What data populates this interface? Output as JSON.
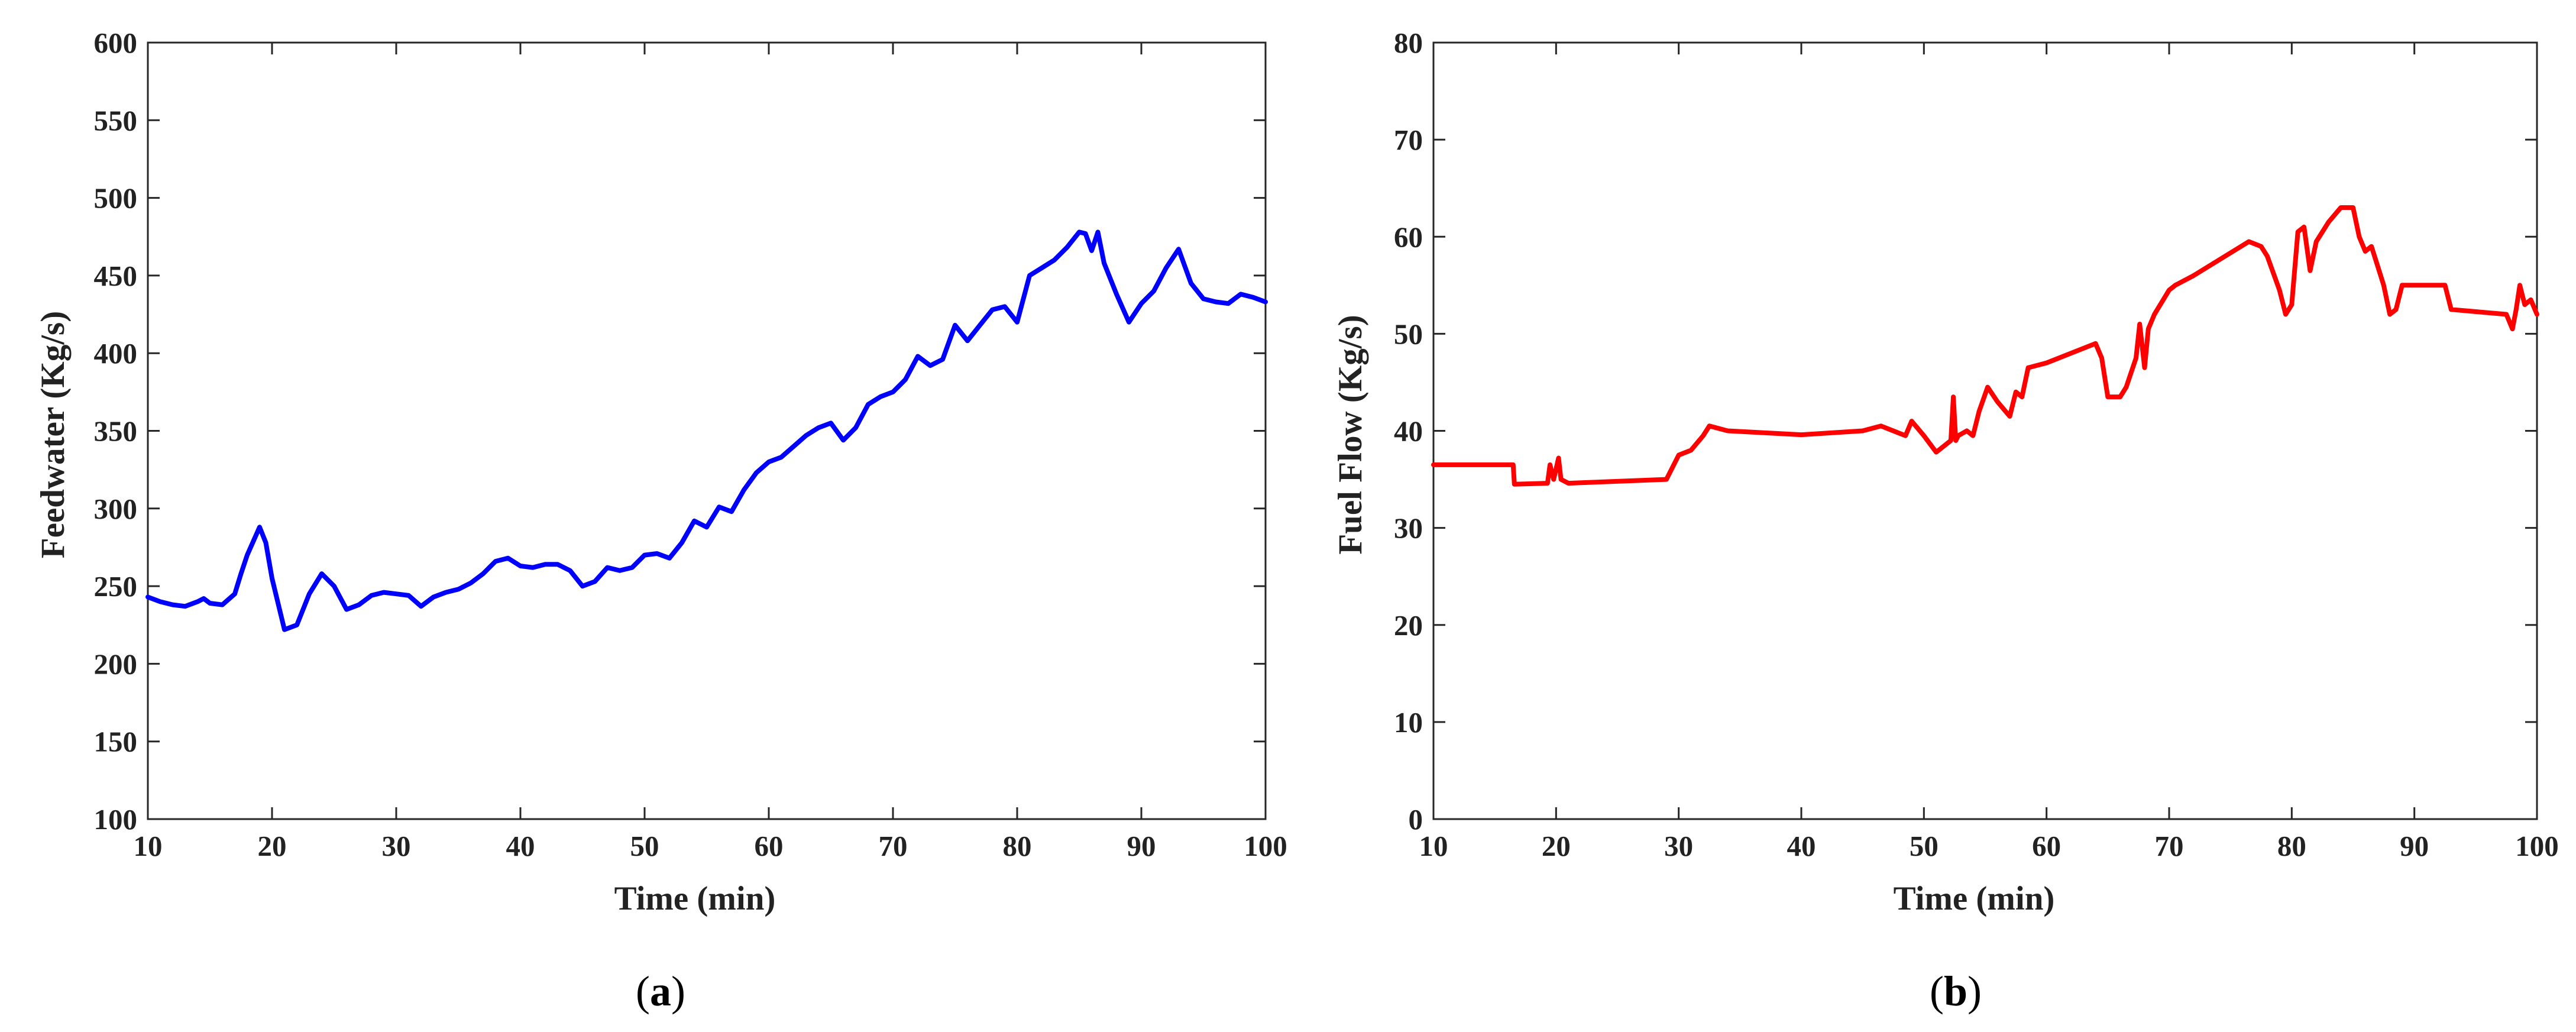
{
  "colors": {
    "series_a": "#0000ff",
    "series_b": "#ff0000",
    "axes": "#262626",
    "background": "#ffffff"
  },
  "chart_data": [
    {
      "panel_label": {
        "open": "(",
        "letter": "a",
        "close": ")"
      },
      "type": "line",
      "xlabel": "Time (min)",
      "ylabel": "Feedwater (Kg/s)",
      "xlim": [
        10,
        100
      ],
      "ylim": [
        100,
        600
      ],
      "xticks": [
        10,
        20,
        30,
        40,
        50,
        60,
        70,
        80,
        90,
        100
      ],
      "yticks": [
        100,
        150,
        200,
        250,
        300,
        350,
        400,
        450,
        500,
        550,
        600
      ],
      "grid": false,
      "series": [
        {
          "color": "#0000ff",
          "x": [
            10,
            11,
            12,
            13,
            14,
            14.5,
            15,
            16,
            17,
            17.5,
            18,
            19,
            19.5,
            20,
            21,
            22,
            23,
            24,
            25,
            26,
            27,
            28,
            29,
            30,
            31,
            32,
            33,
            34,
            35,
            36,
            37,
            38,
            39,
            40,
            41,
            42,
            43,
            44,
            45,
            46,
            47,
            48,
            49,
            50,
            51,
            52,
            53,
            54,
            55,
            56,
            57,
            58,
            59,
            60,
            61,
            62,
            63,
            64,
            65,
            66,
            67,
            68,
            69,
            70,
            71,
            72,
            73,
            74,
            75,
            76,
            77,
            78,
            79,
            80,
            81,
            82,
            83,
            84,
            85,
            85.5,
            86,
            86.5,
            87,
            88,
            89,
            90,
            91,
            92,
            93,
            94,
            95,
            96,
            97,
            98,
            99,
            100
          ],
          "y": [
            243,
            240,
            238,
            237,
            240,
            242,
            239,
            238,
            245,
            258,
            270,
            288,
            278,
            255,
            222,
            225,
            245,
            258,
            250,
            235,
            238,
            244,
            246,
            245,
            244,
            237,
            243,
            246,
            248,
            252,
            258,
            266,
            268,
            263,
            262,
            264,
            264,
            260,
            250,
            253,
            262,
            260,
            262,
            270,
            271,
            268,
            278,
            292,
            288,
            301,
            298,
            312,
            323,
            330,
            333,
            340,
            347,
            352,
            355,
            344,
            352,
            367,
            372,
            375,
            383,
            398,
            392,
            396,
            418,
            408,
            418,
            428,
            430,
            420,
            450,
            455,
            460,
            468,
            478,
            477,
            466,
            478,
            458,
            438,
            420,
            432,
            440,
            455,
            467,
            445,
            435,
            433,
            432,
            438,
            436,
            433
          ]
        }
      ]
    },
    {
      "panel_label": {
        "open": "(",
        "letter": "b",
        "close": ")"
      },
      "type": "line",
      "xlabel": "Time (min)",
      "ylabel": "Fuel Flow (Kg/s)",
      "xlim": [
        10,
        100
      ],
      "ylim": [
        0,
        80
      ],
      "xticks": [
        10,
        20,
        30,
        40,
        50,
        60,
        70,
        80,
        90,
        100
      ],
      "yticks": [
        0,
        10,
        20,
        30,
        40,
        50,
        60,
        70,
        80
      ],
      "grid": false,
      "series": [
        {
          "color": "#ff0000",
          "x": [
            10,
            16.5,
            16.6,
            19.3,
            19.5,
            19.8,
            20.2,
            20.4,
            21,
            29,
            30,
            31,
            32,
            32.5,
            34,
            40,
            45,
            46.5,
            47.5,
            48.5,
            49,
            50,
            51,
            52.2,
            52.4,
            52.6,
            52.8,
            53.5,
            54,
            54.5,
            55.2,
            56,
            57,
            57.5,
            58,
            58.5,
            60,
            64,
            64.5,
            65,
            66,
            66.5,
            67.3,
            67.6,
            68,
            68.3,
            68.8,
            70,
            70.5,
            72,
            76.5,
            77.5,
            78,
            79,
            79.5,
            80,
            80.5,
            81,
            81.5,
            82,
            83,
            84,
            85,
            85.5,
            86,
            86.5,
            87,
            87.5,
            88,
            88.5,
            89,
            92.5,
            93,
            97.5,
            98,
            98.3,
            98.6,
            99,
            99.5,
            100
          ],
          "y": [
            36.5,
            36.5,
            34.5,
            34.6,
            36.5,
            35.0,
            37.2,
            35.0,
            34.6,
            35.0,
            37.5,
            38.0,
            39.5,
            40.5,
            40.0,
            39.6,
            40.0,
            40.5,
            40.0,
            39.5,
            41.0,
            39.5,
            37.8,
            39.0,
            43.5,
            39.0,
            39.5,
            40.0,
            39.5,
            42.0,
            44.5,
            43.0,
            41.5,
            44.0,
            43.5,
            46.5,
            47.0,
            49.0,
            47.5,
            43.5,
            43.5,
            44.5,
            47.5,
            51.0,
            46.5,
            50.5,
            52.0,
            54.5,
            55.0,
            56.0,
            59.5,
            59.0,
            58.0,
            54.5,
            52.0,
            53.0,
            60.5,
            61.0,
            56.5,
            59.5,
            61.5,
            63.0,
            63.0,
            60.0,
            58.5,
            59.0,
            57.0,
            55.0,
            52.0,
            52.5,
            55.0,
            55.0,
            52.5,
            52.0,
            50.5,
            52.5,
            55.0,
            53.0,
            53.5,
            52.0
          ]
        }
      ]
    }
  ]
}
